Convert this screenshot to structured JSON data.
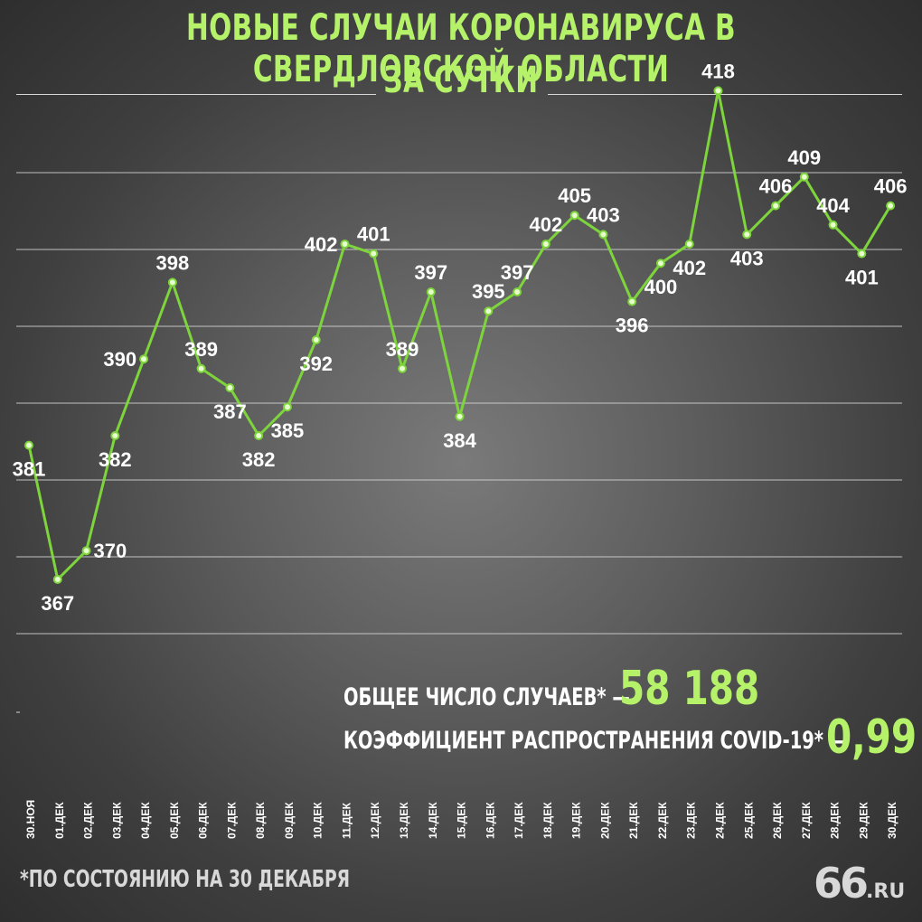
{
  "title": {
    "line1": "НОВЫЕ СЛУЧАИ КОРОНАВИРУСА В СВЕРДЛОВСКОЙ ОБЛАСТИ",
    "line2": "ЗА СУТКИ"
  },
  "summary": {
    "total_label": "ОБЩЕЕ ЧИСЛО СЛУЧАЕВ* —",
    "total_value": "58 188",
    "rate_label": "КОЭФФИЦИЕНТ РАСПРОСТРАНЕНИЯ COVID-19* —",
    "rate_value": "0,99"
  },
  "footnote": "*ПО СОСТОЯНИЮ НА 30 ДЕКАБРЯ",
  "logo": {
    "main": "66",
    "suffix": ".RU"
  },
  "colors": {
    "accent": "#b5f26a",
    "line": "#7ed43c",
    "text": "#ffffff",
    "grid": "#d8d8d8"
  },
  "chart_data": {
    "type": "line",
    "categories": [
      "30.НОЯ",
      "01.ДЕК",
      "02.ДЕК",
      "03.ДЕК",
      "04.ДЕК",
      "05.ДЕК",
      "06.ДЕК",
      "07.ДЕК",
      "08.ДЕК",
      "09.ДЕК",
      "10.ДЕК",
      "11.ДЕК",
      "12.ДЕК",
      "13.ДЕК",
      "14.ДЕК",
      "15.ДЕК",
      "16.ДЕК",
      "17.ДЕК",
      "18.ДЕК",
      "19.ДЕК",
      "20.ДЕК",
      "21.ДЕК",
      "22.ДЕК",
      "23.ДЕК",
      "24.ДЕК",
      "25.ДЕК",
      "26.ДЕК",
      "27.ДЕК",
      "28.ДЕК",
      "29.ДЕК",
      "30.ДЕК"
    ],
    "values": [
      381,
      367,
      370,
      382,
      390,
      398,
      389,
      387,
      382,
      385,
      392,
      402,
      401,
      389,
      397,
      384,
      395,
      397,
      402,
      405,
      403,
      396,
      400,
      402,
      418,
      403,
      406,
      409,
      404,
      401,
      406
    ],
    "label_positions": [
      "below",
      "below",
      "right",
      "below",
      "left",
      "above",
      "above",
      "below",
      "below",
      "below",
      "below",
      "left",
      "above",
      "above",
      "above",
      "below",
      "above",
      "above",
      "above",
      "above",
      "above",
      "below",
      "below",
      "below",
      "above",
      "below",
      "above",
      "above",
      "above",
      "below",
      "above"
    ],
    "ylim": [
      360,
      420
    ],
    "grid": true
  }
}
